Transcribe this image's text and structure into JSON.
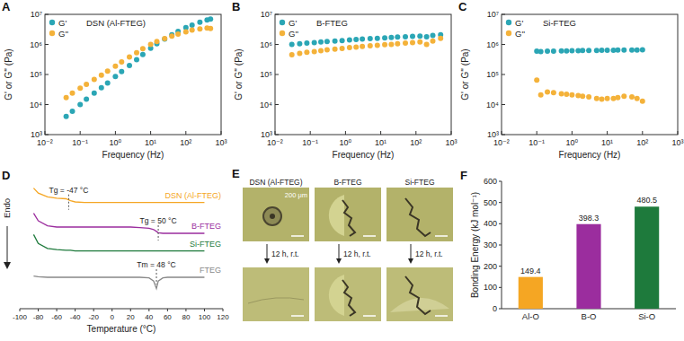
{
  "chart_data": [
    {
      "panel": "A",
      "type": "scatter",
      "title": "DSN (Al-FTEG)",
      "xlabel": "Frequency (Hz)",
      "ylabel": "G' or G'' (Pa)",
      "log": true,
      "grid": false,
      "legend": "top-left",
      "marker": "circle",
      "xlim": [
        0.01,
        1000
      ],
      "ylim": [
        1000,
        10000000
      ],
      "xticks": [
        {
          "value": 0.01,
          "label": "10⁻²"
        },
        {
          "value": 0.1,
          "label": "10⁻¹"
        },
        {
          "value": 1,
          "label": "10⁰"
        },
        {
          "value": 10,
          "label": "10¹"
        },
        {
          "value": 100,
          "label": "10²"
        },
        {
          "value": 1000,
          "label": "10³"
        }
      ],
      "yticks": [
        {
          "value": 1000,
          "label": "10³"
        },
        {
          "value": 10000,
          "label": "10⁴"
        },
        {
          "value": 100000,
          "label": "10⁵"
        },
        {
          "value": 1000000,
          "label": "10⁶"
        },
        {
          "value": 10000000,
          "label": "10⁷"
        }
      ],
      "x": [
        0.04,
        0.06,
        0.1,
        0.15,
        0.25,
        0.4,
        0.6,
        1,
        1.5,
        2.5,
        4,
        6,
        10,
        15,
        25,
        40,
        60,
        100,
        150,
        250,
        400,
        500
      ],
      "series": [
        {
          "name": "G'",
          "color": "#2ba6b5",
          "values": [
            4000,
            6000,
            10000,
            15000,
            24000,
            36000,
            52000,
            85000,
            125000,
            200000,
            310000,
            460000,
            750000,
            1050000,
            1500000,
            2100000,
            2700000,
            3600000,
            4400000,
            5500000,
            6500000,
            7000000
          ]
        },
        {
          "name": "G''",
          "color": "#f4b23a",
          "values": [
            17000,
            24000,
            35000,
            47000,
            68000,
            95000,
            130000,
            190000,
            260000,
            380000,
            530000,
            720000,
            1000000,
            1250000,
            1550000,
            1900000,
            2200000,
            2600000,
            3000000,
            3300000,
            3500000,
            3400000
          ]
        }
      ]
    },
    {
      "panel": "B",
      "type": "scatter",
      "title": "B-FTEG",
      "xlabel": "Frequency (Hz)",
      "ylabel": "G' or G'' (Pa)",
      "log": true,
      "grid": false,
      "legend": "top-left",
      "marker": "circle",
      "xlim": [
        0.01,
        1000
      ],
      "ylim": [
        1000,
        10000000
      ],
      "xticks": [
        {
          "value": 0.01,
          "label": "10⁻²"
        },
        {
          "value": 0.1,
          "label": "10⁻¹"
        },
        {
          "value": 1,
          "label": "10⁰"
        },
        {
          "value": 10,
          "label": "10¹"
        },
        {
          "value": 100,
          "label": "10²"
        },
        {
          "value": 1000,
          "label": "10³"
        }
      ],
      "yticks": [
        {
          "value": 1000,
          "label": "10³"
        },
        {
          "value": 10000,
          "label": "10⁴"
        },
        {
          "value": 100000,
          "label": "10⁵"
        },
        {
          "value": 1000000,
          "label": "10⁶"
        },
        {
          "value": 10000000,
          "label": "10⁷"
        }
      ],
      "x": [
        0.03,
        0.05,
        0.08,
        0.13,
        0.2,
        0.3,
        0.5,
        0.8,
        1.3,
        2,
        3,
        5,
        8,
        13,
        20,
        30,
        50,
        80,
        130,
        200,
        300,
        500
      ],
      "series": [
        {
          "name": "G'",
          "color": "#2ba6b5",
          "values": [
            1000000,
            1050000,
            1100000,
            1150000,
            1200000,
            1250000,
            1300000,
            1350000,
            1400000,
            1450000,
            1500000,
            1550000,
            1600000,
            1650000,
            1700000,
            1750000,
            1800000,
            1850000,
            1900000,
            1800000,
            2000000,
            2100000
          ]
        },
        {
          "name": "G''",
          "color": "#f4b23a",
          "values": [
            450000,
            500000,
            550000,
            580000,
            620000,
            660000,
            700000,
            740000,
            780000,
            820000,
            860000,
            900000,
            940000,
            980000,
            1000000,
            1050000,
            1100000,
            1150000,
            1200000,
            1000000,
            1300000,
            1600000
          ]
        }
      ]
    },
    {
      "panel": "C",
      "type": "scatter",
      "title": "Si-FTEG",
      "xlabel": "Frequency (Hz)",
      "ylabel": "G' or G'' (Pa)",
      "log": true,
      "grid": false,
      "legend": "top-left",
      "marker": "circle",
      "xlim": [
        0.01,
        1000
      ],
      "ylim": [
        1000,
        10000000
      ],
      "xticks": [
        {
          "value": 0.01,
          "label": "10⁻²"
        },
        {
          "value": 0.1,
          "label": "10⁻¹"
        },
        {
          "value": 1,
          "label": "10⁰"
        },
        {
          "value": 10,
          "label": "10¹"
        },
        {
          "value": 100,
          "label": "10²"
        },
        {
          "value": 1000,
          "label": "10³"
        }
      ],
      "yticks": [
        {
          "value": 1000,
          "label": "10³"
        },
        {
          "value": 10000,
          "label": "10⁴"
        },
        {
          "value": 100000,
          "label": "10⁵"
        },
        {
          "value": 1000000,
          "label": "10⁶"
        },
        {
          "value": 10000000,
          "label": "10⁷"
        }
      ],
      "x": [
        0.1,
        0.13,
        0.2,
        0.3,
        0.5,
        0.7,
        1,
        1.5,
        2,
        3,
        5,
        7,
        10,
        15,
        20,
        30,
        50,
        70,
        100
      ],
      "series": [
        {
          "name": "G'",
          "color": "#2ba6b5",
          "values": [
            600000,
            580000,
            600000,
            600000,
            610000,
            610000,
            620000,
            620000,
            630000,
            630000,
            630000,
            640000,
            640000,
            640000,
            650000,
            650000,
            650000,
            650000,
            660000
          ]
        },
        {
          "name": "G''",
          "color": "#f4b23a",
          "values": [
            65000,
            21000,
            26000,
            25000,
            23000,
            22000,
            21000,
            20000,
            19000,
            18000,
            16000,
            15000,
            16000,
            16000,
            17000,
            19000,
            18000,
            16000,
            13000
          ]
        }
      ]
    },
    {
      "panel": "D",
      "type": "line",
      "xlabel": "Temperature (°C)",
      "ylabel": "Endo",
      "grid": false,
      "tick_labels": "x",
      "xlim": [
        -100,
        120
      ],
      "ylim": [
        0,
        10
      ],
      "xticks": [
        -100,
        -80,
        -60,
        -40,
        -20,
        0,
        20,
        40,
        60,
        80,
        100,
        120
      ],
      "x": [
        -85,
        -80,
        -70,
        -60,
        -50,
        -45,
        -40,
        -30,
        -20,
        -10,
        0,
        10,
        20,
        30,
        40,
        45,
        48,
        50,
        55,
        60,
        70,
        80,
        90,
        100
      ],
      "series": [
        {
          "name": "DSN (Al-FTEG)",
          "color": "#f5a623",
          "values": [
            9.6,
            9.2,
            8.9,
            8.8,
            8.75,
            8.6,
            8.5,
            8.45,
            8.45,
            8.45,
            8.45,
            8.45,
            8.45,
            8.45,
            8.45,
            8.45,
            8.45,
            8.45,
            8.45,
            8.45,
            8.45,
            8.45,
            8.45,
            8.45
          ],
          "annotation": {
            "text": "Tg = -47 °C",
            "x": -47
          }
        },
        {
          "name": "B-FTEG",
          "color": "#9b2d9e",
          "values": [
            7.6,
            7.0,
            6.6,
            6.5,
            6.5,
            6.5,
            6.5,
            6.5,
            6.5,
            6.5,
            6.5,
            6.5,
            6.5,
            6.45,
            6.4,
            6.3,
            6.15,
            6.05,
            6.0,
            6.0,
            6.0,
            6.0,
            6.0,
            6.0
          ],
          "annotation": {
            "text": "Tg = 50 °C",
            "x": 50
          }
        },
        {
          "name": "Si-FTEG",
          "color": "#1e7a3c",
          "values": [
            5.9,
            5.2,
            4.8,
            4.7,
            4.65,
            4.65,
            4.6,
            4.6,
            4.6,
            4.6,
            4.6,
            4.6,
            4.6,
            4.6,
            4.6,
            4.6,
            4.6,
            4.6,
            4.6,
            4.6,
            4.6,
            4.6,
            4.6,
            4.6
          ]
        },
        {
          "name": "FTEG",
          "color": "#888888",
          "values": [
            2.6,
            2.55,
            2.5,
            2.5,
            2.5,
            2.5,
            2.5,
            2.5,
            2.5,
            2.5,
            2.5,
            2.5,
            2.5,
            2.5,
            2.45,
            2.2,
            1.6,
            2.2,
            2.45,
            2.5,
            2.5,
            2.5,
            2.5,
            2.5
          ],
          "annotation": {
            "text": "Tm = 48 °C",
            "x": 48
          }
        }
      ]
    },
    {
      "panel": "F",
      "type": "bar",
      "ylabel": "Bonding Energy (kJ mol⁻¹)",
      "grid": false,
      "data_labels": true,
      "categories": [
        "Al-O",
        "B-O",
        "Si-O"
      ],
      "values": [
        149.4,
        398.3,
        480.5
      ],
      "colors": [
        "#f5a623",
        "#9b2d9e",
        "#1e7a3c"
      ],
      "ylim": [
        0,
        600
      ],
      "yticks": [
        0,
        100,
        200,
        300,
        400,
        500,
        600
      ]
    }
  ],
  "micrographs": {
    "panel": "E",
    "samples": [
      "DSN (Al-FTEG)",
      "B-FTEG",
      "Si-FTEG"
    ],
    "scale_bar": "200 μm",
    "step": "12 h, r.t."
  }
}
